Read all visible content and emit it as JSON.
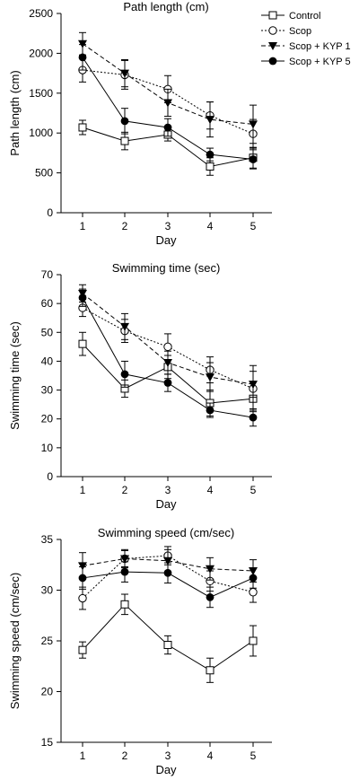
{
  "legend": [
    {
      "label": "Control",
      "marker": "square-open",
      "line": "solid"
    },
    {
      "label": "Scop",
      "marker": "circle-open",
      "line": "dotted"
    },
    {
      "label": "Scop + KYP 1",
      "marker": "triangle-down-filled",
      "line": "dashed"
    },
    {
      "label": "Scop + KYP 5",
      "marker": "circle-filled",
      "line": "solid"
    }
  ],
  "chart_data": [
    {
      "type": "line",
      "title": "Path length (cm)",
      "xlabel": "Day",
      "ylabel": "Path length (cm)",
      "x": [
        1,
        2,
        3,
        4,
        5
      ],
      "ylim": [
        0,
        2500
      ],
      "yticks": [
        0,
        500,
        1000,
        1500,
        2000,
        2500
      ],
      "series": [
        {
          "name": "Control",
          "values": [
            1070,
            900,
            980,
            580,
            690
          ],
          "errors": [
            90,
            110,
            80,
            110,
            130
          ]
        },
        {
          "name": "Scop",
          "values": [
            1790,
            1730,
            1550,
            1220,
            990
          ],
          "errors": [
            150,
            180,
            170,
            170,
            180
          ]
        },
        {
          "name": "Scop + KYP 1",
          "values": [
            2120,
            1750,
            1380,
            1170,
            1110
          ],
          "errors": [
            140,
            170,
            170,
            220,
            240
          ]
        },
        {
          "name": "Scop + KYP 5",
          "values": [
            1950,
            1150,
            1070,
            730,
            670
          ],
          "errors": [
            160,
            160,
            110,
            80,
            120
          ]
        }
      ]
    },
    {
      "type": "line",
      "title": "Swimming time (sec)",
      "xlabel": "Day",
      "ylabel": "Swimming time (sec)",
      "x": [
        1,
        2,
        3,
        4,
        5
      ],
      "ylim": [
        0,
        70
      ],
      "yticks": [
        0,
        10,
        20,
        30,
        40,
        50,
        60,
        70
      ],
      "series": [
        {
          "name": "Control",
          "values": [
            46,
            30.5,
            38,
            25.5,
            27
          ],
          "errors": [
            4,
            3,
            4,
            4.5,
            4
          ]
        },
        {
          "name": "Scop",
          "values": [
            58.5,
            50.5,
            45,
            37,
            30.5
          ],
          "errors": [
            3,
            4,
            4.5,
            4.5,
            8
          ]
        },
        {
          "name": "Scop + KYP 1",
          "values": [
            63.5,
            52,
            39.5,
            34.5,
            32
          ],
          "errors": [
            3,
            4.5,
            4,
            5,
            4.5
          ]
        },
        {
          "name": "Scop + KYP 5",
          "values": [
            62,
            35.5,
            32.5,
            23,
            20.5
          ],
          "errors": [
            3,
            4.5,
            3,
            2.5,
            3
          ]
        }
      ]
    },
    {
      "type": "line",
      "title": "Swimming speed (cm/sec)",
      "xlabel": "Day",
      "ylabel": "Swimming speed (cm/sec)",
      "x": [
        1,
        2,
        3,
        4,
        5
      ],
      "ylim": [
        15,
        35
      ],
      "yticks": [
        15,
        20,
        25,
        30,
        35
      ],
      "series": [
        {
          "name": "Control",
          "values": [
            24.1,
            28.6,
            24.6,
            22.1,
            25.0
          ],
          "errors": [
            0.8,
            1.0,
            0.9,
            1.2,
            1.5
          ]
        },
        {
          "name": "Scop",
          "values": [
            29.2,
            33.1,
            33.4,
            30.9,
            29.8
          ],
          "errors": [
            1.1,
            0.8,
            0.9,
            1.0,
            1.0
          ]
        },
        {
          "name": "Scop + KYP 1",
          "values": [
            32.4,
            33.1,
            32.9,
            32.1,
            31.9
          ],
          "errors": [
            1.3,
            0.9,
            1.1,
            1.1,
            1.1
          ]
        },
        {
          "name": "Scop + KYP 5",
          "values": [
            31.2,
            31.8,
            31.7,
            29.3,
            31.2
          ],
          "errors": [
            1.1,
            1.0,
            1.0,
            1.0,
            1.0
          ]
        }
      ]
    }
  ]
}
